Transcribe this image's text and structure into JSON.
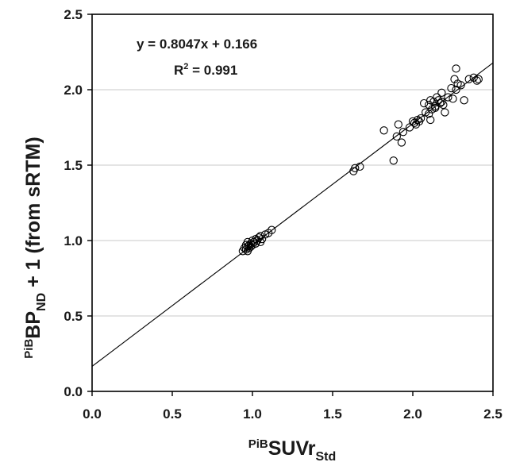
{
  "chart_data": {
    "type": "scatter",
    "xlabel": {
      "prefix": "PiB",
      "main": "SUVr",
      "subscript": "Std"
    },
    "ylabel": {
      "prefix": "PiB",
      "main": "BP",
      "subscript": "ND",
      "suffix": " + 1 (from sRTM)"
    },
    "xlim": [
      0.0,
      2.5
    ],
    "ylim": [
      0.0,
      2.5
    ],
    "x_ticks": [
      "0.0",
      "0.5",
      "1.0",
      "1.5",
      "2.0",
      "2.5"
    ],
    "y_ticks": [
      "0.0",
      "0.5",
      "1.0",
      "1.5",
      "2.0",
      "2.5"
    ],
    "grid": "horizontal",
    "annotations": {
      "equation": "y = 0.8047x + 0.166",
      "r2_prefix": "R",
      "r2_exp": "2",
      "r2_suffix": " = 0.991"
    },
    "fit": {
      "slope": 0.8047,
      "intercept": 0.166
    },
    "series": [
      {
        "marker": "open-circle",
        "x": [
          0.94,
          0.95,
          0.96,
          0.96,
          0.97,
          0.97,
          0.98,
          0.98,
          0.99,
          1.0,
          1.0,
          1.01,
          1.02,
          1.02,
          1.03,
          1.04,
          1.05,
          1.05,
          1.06,
          1.08,
          1.1,
          1.12,
          0.97,
          0.99,
          1.03,
          1.63,
          1.64,
          1.67,
          1.82,
          1.88,
          1.9,
          1.91,
          1.93,
          1.94,
          1.98,
          2.0,
          2.01,
          2.02,
          2.03,
          2.04,
          2.05,
          2.07,
          2.08,
          2.1,
          2.1,
          2.11,
          2.12,
          2.13,
          2.14,
          2.15,
          2.16,
          2.17,
          2.18,
          2.18,
          2.19,
          2.2,
          2.22,
          2.24,
          2.25,
          2.26,
          2.27,
          2.27,
          2.28,
          2.3,
          2.32,
          2.35,
          2.38,
          2.4,
          2.41,
          2.11,
          2.14
        ],
        "y": [
          0.93,
          0.95,
          0.94,
          0.97,
          0.96,
          0.99,
          0.97,
          0.95,
          0.98,
          1.0,
          0.97,
          0.99,
          1.01,
          0.98,
          1.0,
          1.02,
          0.99,
          1.03,
          1.01,
          1.04,
          1.05,
          1.07,
          0.93,
          0.96,
          1.0,
          1.46,
          1.48,
          1.49,
          1.73,
          1.53,
          1.69,
          1.77,
          1.65,
          1.72,
          1.75,
          1.79,
          1.78,
          1.77,
          1.8,
          1.79,
          1.81,
          1.91,
          1.85,
          1.84,
          1.9,
          1.8,
          1.87,
          1.92,
          1.88,
          1.95,
          1.93,
          1.91,
          1.98,
          1.92,
          1.9,
          1.85,
          1.95,
          2.01,
          1.94,
          2.07,
          2.14,
          2.0,
          2.04,
          2.03,
          1.93,
          2.07,
          2.08,
          2.06,
          2.07,
          1.93,
          1.89
        ]
      }
    ]
  }
}
